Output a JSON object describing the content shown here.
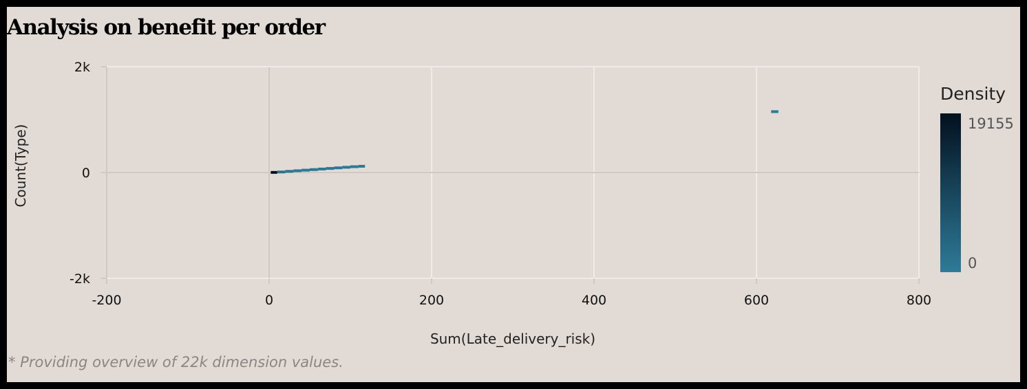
{
  "title": "Analysis on benefit per order",
  "footnote": "* Providing overview of 22k dimension values.",
  "colors": {
    "background": "#e2dad5",
    "frame": "#000000",
    "density_low": "#2e7b98",
    "density_high": "#03101f",
    "grid": "#f0ebe8"
  },
  "chart_data": {
    "type": "heatmap",
    "xlabel": "Sum(Late_delivery_risk)",
    "ylabel": "Count(Type)",
    "xlim": [
      -200,
      800
    ],
    "ylim": [
      -2000,
      2000
    ],
    "x_ticks": [
      -200,
      0,
      200,
      400,
      600,
      800
    ],
    "x_tick_labels": [
      "-200",
      "0",
      "200",
      "400",
      "600",
      "800"
    ],
    "y_ticks": [
      2000,
      0,
      -2000
    ],
    "y_tick_labels": [
      "2k",
      "0",
      "-2k"
    ],
    "grid": true,
    "legend": {
      "title": "Density",
      "max_label": "19155",
      "min_label": "0",
      "max": 19155,
      "min": 0,
      "placement": "right"
    },
    "cells": [
      {
        "x0": 2,
        "x1": 10,
        "y": 2,
        "density": 19155
      },
      {
        "x0": 10,
        "x1": 20,
        "y": 10,
        "density": 1200
      },
      {
        "x0": 20,
        "x1": 30,
        "y": 22,
        "density": 900
      },
      {
        "x0": 30,
        "x1": 40,
        "y": 33,
        "density": 800
      },
      {
        "x0": 40,
        "x1": 50,
        "y": 44,
        "density": 700
      },
      {
        "x0": 50,
        "x1": 60,
        "y": 55,
        "density": 700
      },
      {
        "x0": 60,
        "x1": 70,
        "y": 66,
        "density": 650
      },
      {
        "x0": 70,
        "x1": 80,
        "y": 77,
        "density": 600
      },
      {
        "x0": 80,
        "x1": 90,
        "y": 88,
        "density": 550
      },
      {
        "x0": 90,
        "x1": 100,
        "y": 99,
        "density": 500
      },
      {
        "x0": 100,
        "x1": 110,
        "y": 110,
        "density": 450
      },
      {
        "x0": 110,
        "x1": 118,
        "y": 118,
        "density": 400
      },
      {
        "x0": 618,
        "x1": 627,
        "y": 1150,
        "density": 50
      }
    ]
  }
}
